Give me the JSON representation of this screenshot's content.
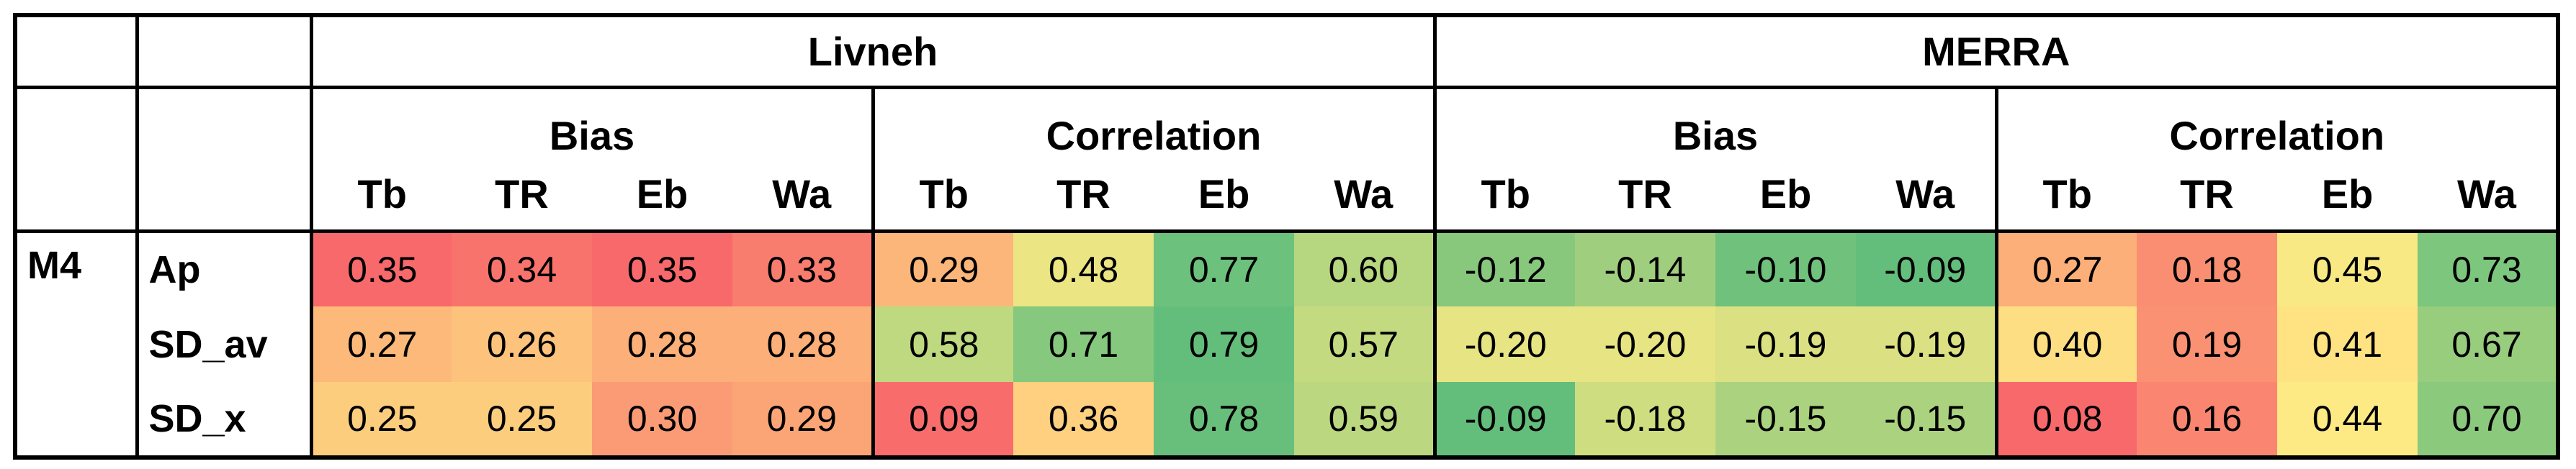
{
  "table": {
    "groups": [
      {
        "name": "Livneh",
        "metrics": [
          {
            "name": "Bias",
            "columns": [
              "Tb",
              "TR",
              "Eb",
              "Wa"
            ]
          },
          {
            "name": "Correlation",
            "columns": [
              "Tb",
              "TR",
              "Eb",
              "Wa"
            ]
          }
        ]
      },
      {
        "name": "MERRA",
        "metrics": [
          {
            "name": "Bias",
            "columns": [
              "Tb",
              "TR",
              "Eb",
              "Wa"
            ]
          },
          {
            "name": "Correlation",
            "columns": [
              "Tb",
              "TR",
              "Eb",
              "Wa"
            ]
          }
        ]
      }
    ],
    "model": "M4",
    "rows": [
      {
        "label": "Ap",
        "values": [
          "0.35",
          "0.34",
          "0.35",
          "0.33",
          "0.29",
          "0.48",
          "0.77",
          "0.60",
          "-0.12",
          "-0.14",
          "-0.10",
          "-0.09",
          "0.27",
          "0.18",
          "0.45",
          "0.73"
        ]
      },
      {
        "label": "SD_av",
        "values": [
          "0.27",
          "0.26",
          "0.28",
          "0.28",
          "0.58",
          "0.71",
          "0.79",
          "0.57",
          "-0.20",
          "-0.20",
          "-0.19",
          "-0.19",
          "0.40",
          "0.19",
          "0.41",
          "0.67"
        ]
      },
      {
        "label": "SD_x",
        "values": [
          "0.25",
          "0.25",
          "0.30",
          "0.29",
          "0.09",
          "0.36",
          "0.78",
          "0.59",
          "-0.09",
          "-0.18",
          "-0.15",
          "-0.15",
          "0.08",
          "0.16",
          "0.44",
          "0.70"
        ]
      }
    ]
  }
}
